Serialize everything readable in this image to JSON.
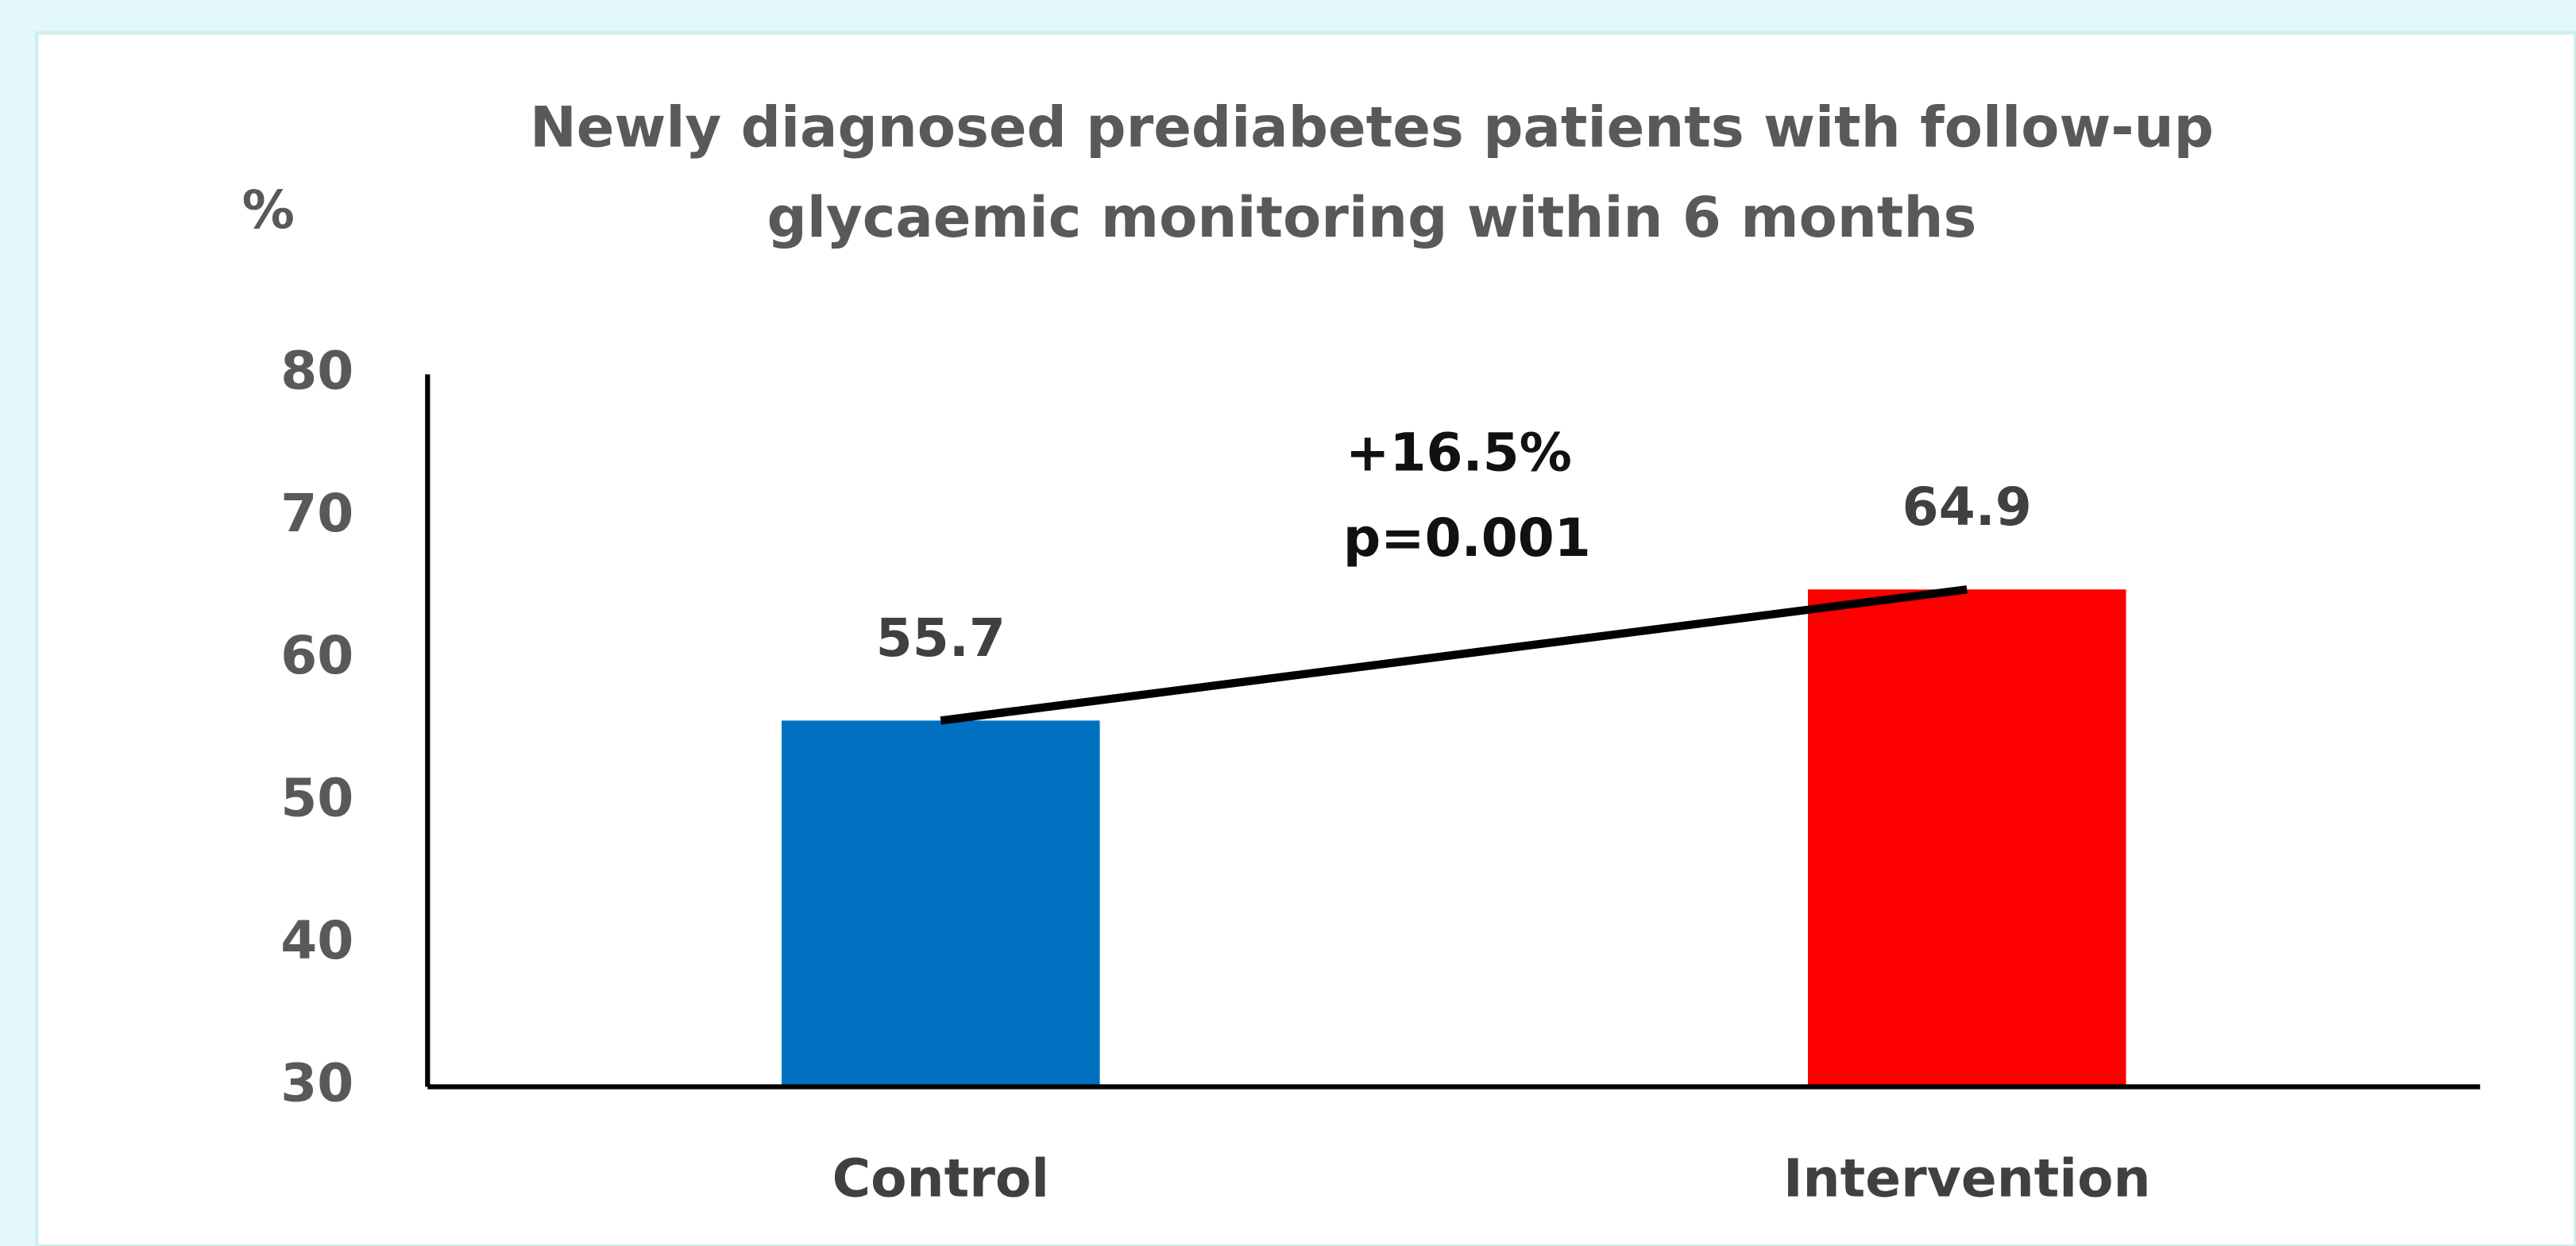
{
  "chart_data": {
    "type": "bar",
    "title": [
      "Newly diagnosed prediabetes patients with follow-up",
      "glycaemic monitoring within 6 months"
    ],
    "y_label": "%",
    "categories": [
      "Control",
      "Intervention"
    ],
    "values": [
      55.7,
      64.9
    ],
    "colors": [
      "#0070c0",
      "#ff0000"
    ],
    "annotations": [
      "+16.5%",
      "p=0.001"
    ],
    "ylim": [
      30,
      80
    ],
    "yticks": [
      30,
      40,
      50,
      60,
      70,
      80
    ],
    "grid": false
  }
}
